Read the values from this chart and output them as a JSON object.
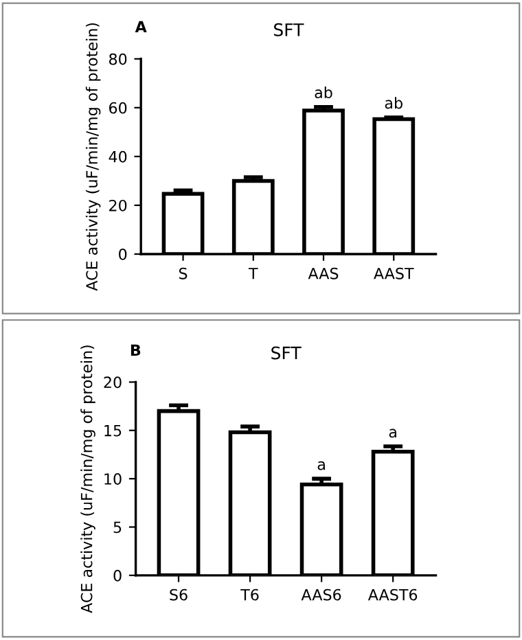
{
  "chart_data": [
    {
      "type": "bar",
      "title": "SFT",
      "ylabel": "ACE activity (uF/min/mg of protein)",
      "categories": [
        "S",
        "T",
        "AAS",
        "AAST"
      ],
      "values": [
        24.7,
        30,
        58.8,
        55.3
      ],
      "errors": [
        1.4,
        1.5,
        1.5,
        0.7
      ],
      "color": "#ffffff",
      "ylim": [
        0,
        80
      ],
      "yticks": [
        0,
        20,
        40,
        60,
        80
      ],
      "grid": false,
      "annotations": [
        "A",
        {
          "text": "ab",
          "x": "AAS",
          "y": 60.3
        },
        {
          "text": "ab",
          "x": "AAST",
          "y": 56
        }
      ]
    },
    {
      "type": "bar",
      "title": "SFT",
      "ylabel": "ACE activity (uF/min/mg of protein)",
      "categories": [
        "S6",
        "T6",
        "AAS6",
        "AAST6"
      ],
      "values": [
        17,
        14.8,
        9.4,
        12.8
      ],
      "errors": [
        0.6,
        0.6,
        0.6,
        0.55
      ],
      "color": "#ffffff",
      "ylim": [
        0,
        20
      ],
      "yticks": [
        0,
        5,
        10,
        15,
        20
      ],
      "grid": false,
      "annotations": [
        "B",
        {
          "text": "a",
          "x": "AAS6",
          "y": 10
        },
        {
          "text": "a",
          "x": "AAST6",
          "y": 13.35
        }
      ]
    }
  ]
}
